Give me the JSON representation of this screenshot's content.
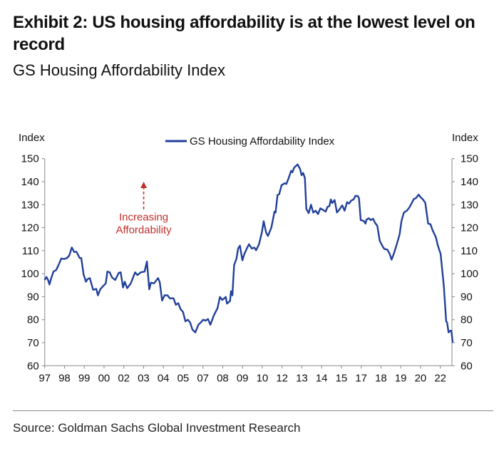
{
  "title": "Exhibit 2: US housing affordability is at the lowest level on record",
  "subtitle": "GS Housing Affordability Index",
  "source": "Source: Goldman Sachs Global Investment Research",
  "colors": {
    "line": "#21409a",
    "annotation": "#c0302a",
    "axis": "#888888"
  },
  "chart_data": {
    "type": "line",
    "title": "",
    "ylabel_left": "Index",
    "ylabel_right": "Index",
    "ylim": [
      60,
      150
    ],
    "yticks": [
      60,
      70,
      80,
      90,
      100,
      110,
      120,
      130,
      140,
      150
    ],
    "xlim": [
      1997,
      2022.8
    ],
    "xticks": [
      1997,
      1998.25,
      1999.5,
      2000.75,
      2002,
      2003.25,
      2004.5,
      2005.75,
      2007,
      2008.25,
      2009.5,
      2010.75,
      2012,
      2013.25,
      2014.5,
      2015.75,
      2017,
      2018.25,
      2019.5,
      2020.75,
      2022
    ],
    "xtick_labels": [
      "97",
      "98",
      "99",
      "00",
      "02",
      "03",
      "04",
      "05",
      "07",
      "08",
      "09",
      "10",
      "12",
      "13",
      "14",
      "15",
      "17",
      "18",
      "19",
      "20",
      "22"
    ],
    "grid": false,
    "legend_position": "top-center",
    "annotation": {
      "text_line1": "Increasing",
      "text_line2": "Affordability",
      "x": 2003.3,
      "arrow_from": 128,
      "arrow_to": 140
    },
    "series": [
      {
        "name": "GS Housing Affordability Index",
        "x": [
          1997.0,
          1997.11,
          1997.21,
          1997.3,
          1997.41,
          1997.56,
          1997.71,
          1997.86,
          1998.05,
          1998.23,
          1998.41,
          1998.56,
          1998.71,
          1998.86,
          1999.01,
          1999.21,
          1999.31,
          1999.46,
          1999.61,
          1999.7,
          1999.85,
          2000.06,
          2000.26,
          2000.36,
          2000.51,
          2000.66,
          2000.86,
          2000.96,
          2001.11,
          2001.26,
          2001.46,
          2001.68,
          2001.8,
          2001.95,
          2002.06,
          2002.21,
          2002.44,
          2002.71,
          2002.86,
          2003.07,
          2003.31,
          2003.46,
          2003.61,
          2003.71,
          2003.91,
          2004.16,
          2004.27,
          2004.42,
          2004.57,
          2004.76,
          2004.91,
          2005.14,
          2005.29,
          2005.44,
          2005.59,
          2005.74,
          2005.89,
          2006.04,
          2006.19,
          2006.34,
          2006.52,
          2006.71,
          2006.86,
          2007.02,
          2007.17,
          2007.32,
          2007.47,
          2007.69,
          2007.92,
          2008.07,
          2008.22,
          2008.44,
          2008.52,
          2008.71,
          2008.77,
          2008.86,
          2008.97,
          2009.12,
          2009.22,
          2009.34,
          2009.49,
          2009.61,
          2009.79,
          2009.91,
          2010.09,
          2010.24,
          2010.36,
          2010.54,
          2010.72,
          2010.84,
          2010.99,
          2011.11,
          2011.32,
          2011.44,
          2011.52,
          2011.59,
          2011.71,
          2011.82,
          2011.97,
          2012.17,
          2012.27,
          2012.42,
          2012.57,
          2012.65,
          2012.77,
          2012.98,
          2013.14,
          2013.23,
          2013.33,
          2013.44,
          2013.53,
          2013.68,
          2013.83,
          2013.97,
          2014.12,
          2014.27,
          2014.42,
          2014.6,
          2014.75,
          2014.87,
          2014.99,
          2015.08,
          2015.17,
          2015.32,
          2015.47,
          2015.62,
          2015.8,
          2015.95,
          2016.11,
          2016.23,
          2016.37,
          2016.52,
          2016.63,
          2016.78,
          2016.86,
          2016.97,
          2017.15,
          2017.27,
          2017.33,
          2017.48,
          2017.6,
          2017.75,
          2017.87,
          2018.02,
          2018.17,
          2018.35,
          2018.47,
          2018.65,
          2018.8,
          2018.92,
          2019.07,
          2019.25,
          2019.43,
          2019.55,
          2019.7,
          2019.88,
          2020.03,
          2020.18,
          2020.33,
          2020.45,
          2020.63,
          2020.75,
          2020.9,
          2021.05,
          2021.23,
          2021.38,
          2021.5,
          2021.72,
          2021.83,
          2022.02,
          2022.22,
          2022.37,
          2022.43,
          2022.52,
          2022.63,
          2022.7,
          2022.78
        ],
        "y": [
          97.3,
          98.6,
          97.3,
          95.3,
          98.0,
          101.0,
          101.5,
          103.5,
          106.6,
          106.4,
          106.8,
          108.0,
          111.4,
          109.5,
          109.5,
          106.8,
          106.8,
          99.6,
          96.5,
          97.6,
          98.1,
          93.0,
          93.4,
          90.6,
          93.2,
          94.4,
          95.8,
          100.9,
          100.6,
          98.3,
          97.3,
          100.4,
          100.6,
          94.0,
          96.5,
          93.7,
          95.8,
          100.6,
          99.4,
          100.6,
          100.9,
          105.3,
          93.2,
          96.1,
          95.8,
          98.1,
          96.3,
          88.3,
          90.6,
          90.6,
          89.3,
          89.3,
          86.5,
          87.2,
          84.5,
          83.4,
          79.3,
          80.0,
          78.8,
          75.7,
          74.5,
          77.8,
          78.8,
          80.0,
          79.6,
          80.3,
          77.8,
          81.9,
          85.0,
          89.9,
          88.6,
          89.9,
          87.0,
          88.1,
          92.4,
          90.6,
          103.7,
          106.6,
          110.9,
          112.2,
          105.8,
          108.4,
          111.2,
          112.8,
          110.9,
          111.4,
          110.2,
          112.8,
          117.9,
          122.8,
          117.9,
          116.4,
          120.0,
          124.1,
          127.0,
          126.6,
          134.2,
          134.6,
          138.5,
          139.3,
          139.0,
          141.6,
          144.7,
          144.1,
          146.2,
          147.5,
          145.5,
          142.8,
          143.8,
          141.6,
          128.2,
          126.3,
          130.0,
          126.6,
          127.4,
          125.9,
          128.4,
          127.7,
          127.0,
          129.0,
          129.4,
          132.3,
          130.7,
          132.0,
          126.6,
          127.9,
          129.7,
          127.4,
          131.1,
          130.5,
          131.8,
          132.3,
          133.8,
          133.8,
          132.8,
          123.3,
          123.0,
          121.8,
          123.5,
          124.1,
          123.3,
          123.9,
          122.2,
          120.8,
          114.3,
          111.9,
          110.7,
          110.5,
          108.6,
          106.1,
          108.9,
          112.8,
          117.1,
          123.1,
          126.6,
          127.4,
          128.7,
          130.5,
          132.5,
          132.8,
          134.4,
          133.2,
          132.3,
          130.8,
          121.8,
          121.5,
          119.1,
          115.8,
          112.6,
          108.6,
          94.7,
          79.3,
          78.8,
          74.5,
          75.2,
          75.2,
          70.1
        ]
      }
    ]
  }
}
